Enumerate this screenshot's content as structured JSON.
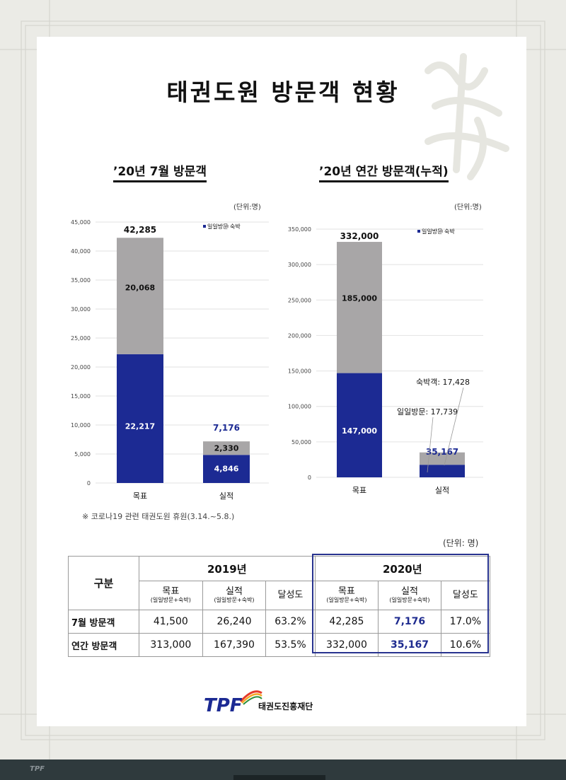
{
  "page": {
    "title": "태권도원 방문객 현황",
    "covid_note": "※ 코로나19 관련 태권도원 휴원(3.14.~5.8.)",
    "table_unit": "(단위: 명)"
  },
  "chart_data": [
    {
      "type": "bar",
      "stacked": true,
      "title": "’20년 7월 방문객",
      "unit": "(단위:명)",
      "categories": [
        "목표",
        "실적"
      ],
      "series": [
        {
          "name": "일일방문",
          "values": [
            22217,
            4846
          ],
          "labels": [
            "22,217",
            "4,846"
          ],
          "color": "#1c2a93"
        },
        {
          "name": "숙박",
          "values": [
            20068,
            2330
          ],
          "labels": [
            "20,068",
            "2,330"
          ],
          "color": "#a8a6a7"
        }
      ],
      "totals": [
        42285,
        7176
      ],
      "total_labels": [
        "42,285",
        "7,176"
      ],
      "ylim": [
        0,
        45000
      ],
      "yticks": [
        "0",
        "5,000",
        "10,000",
        "15,000",
        "20,000",
        "25,000",
        "30,000",
        "35,000",
        "40,000",
        "45,000"
      ],
      "grid": true,
      "legend": "top-right"
    },
    {
      "type": "bar",
      "stacked": true,
      "title": "’20년 연간 방문객(누적)",
      "unit": "(단위:명)",
      "categories": [
        "목표",
        "실적"
      ],
      "series": [
        {
          "name": "일일방문",
          "values": [
            147000,
            17739
          ],
          "labels": [
            "147,000",
            ""
          ],
          "color": "#1c2a93"
        },
        {
          "name": "숙박",
          "values": [
            185000,
            17428
          ],
          "labels": [
            "185,000",
            ""
          ],
          "color": "#a8a6a7"
        }
      ],
      "totals": [
        332000,
        35167
      ],
      "total_labels": [
        "332,000",
        "35,167"
      ],
      "ylim": [
        0,
        350000
      ],
      "yticks": [
        "0",
        "50,000",
        "100,000",
        "150,000",
        "200,000",
        "250,000",
        "300,000",
        "350,000"
      ],
      "grid": true,
      "legend": "top-right",
      "annotations": [
        "숙박객: 17,428",
        "일일방문: 17,739"
      ]
    }
  ],
  "table": {
    "gubun": "구분",
    "years": [
      "2019년",
      "2020년"
    ],
    "target": "목표",
    "actual": "실적",
    "sub_note": "(일일방문+숙박)",
    "achieve": "달성도",
    "rows": [
      {
        "label": "7월 방문객",
        "v2019": [
          "41,500",
          "26,240",
          "63.2%"
        ],
        "v2020": [
          "42,285",
          "7,176",
          "17.0%"
        ]
      },
      {
        "label": "연간 방문객",
        "v2019": [
          "313,000",
          "167,390",
          "53.5%"
        ],
        "v2020": [
          "332,000",
          "35,167",
          "10.6%"
        ]
      }
    ]
  },
  "footer": {
    "logo_text": "TPF",
    "org_name": "태권도진흥재단"
  },
  "colors": {
    "accent": "#1c2a93",
    "gray": "#a8a6a7",
    "footer": "#2f3a3d"
  }
}
